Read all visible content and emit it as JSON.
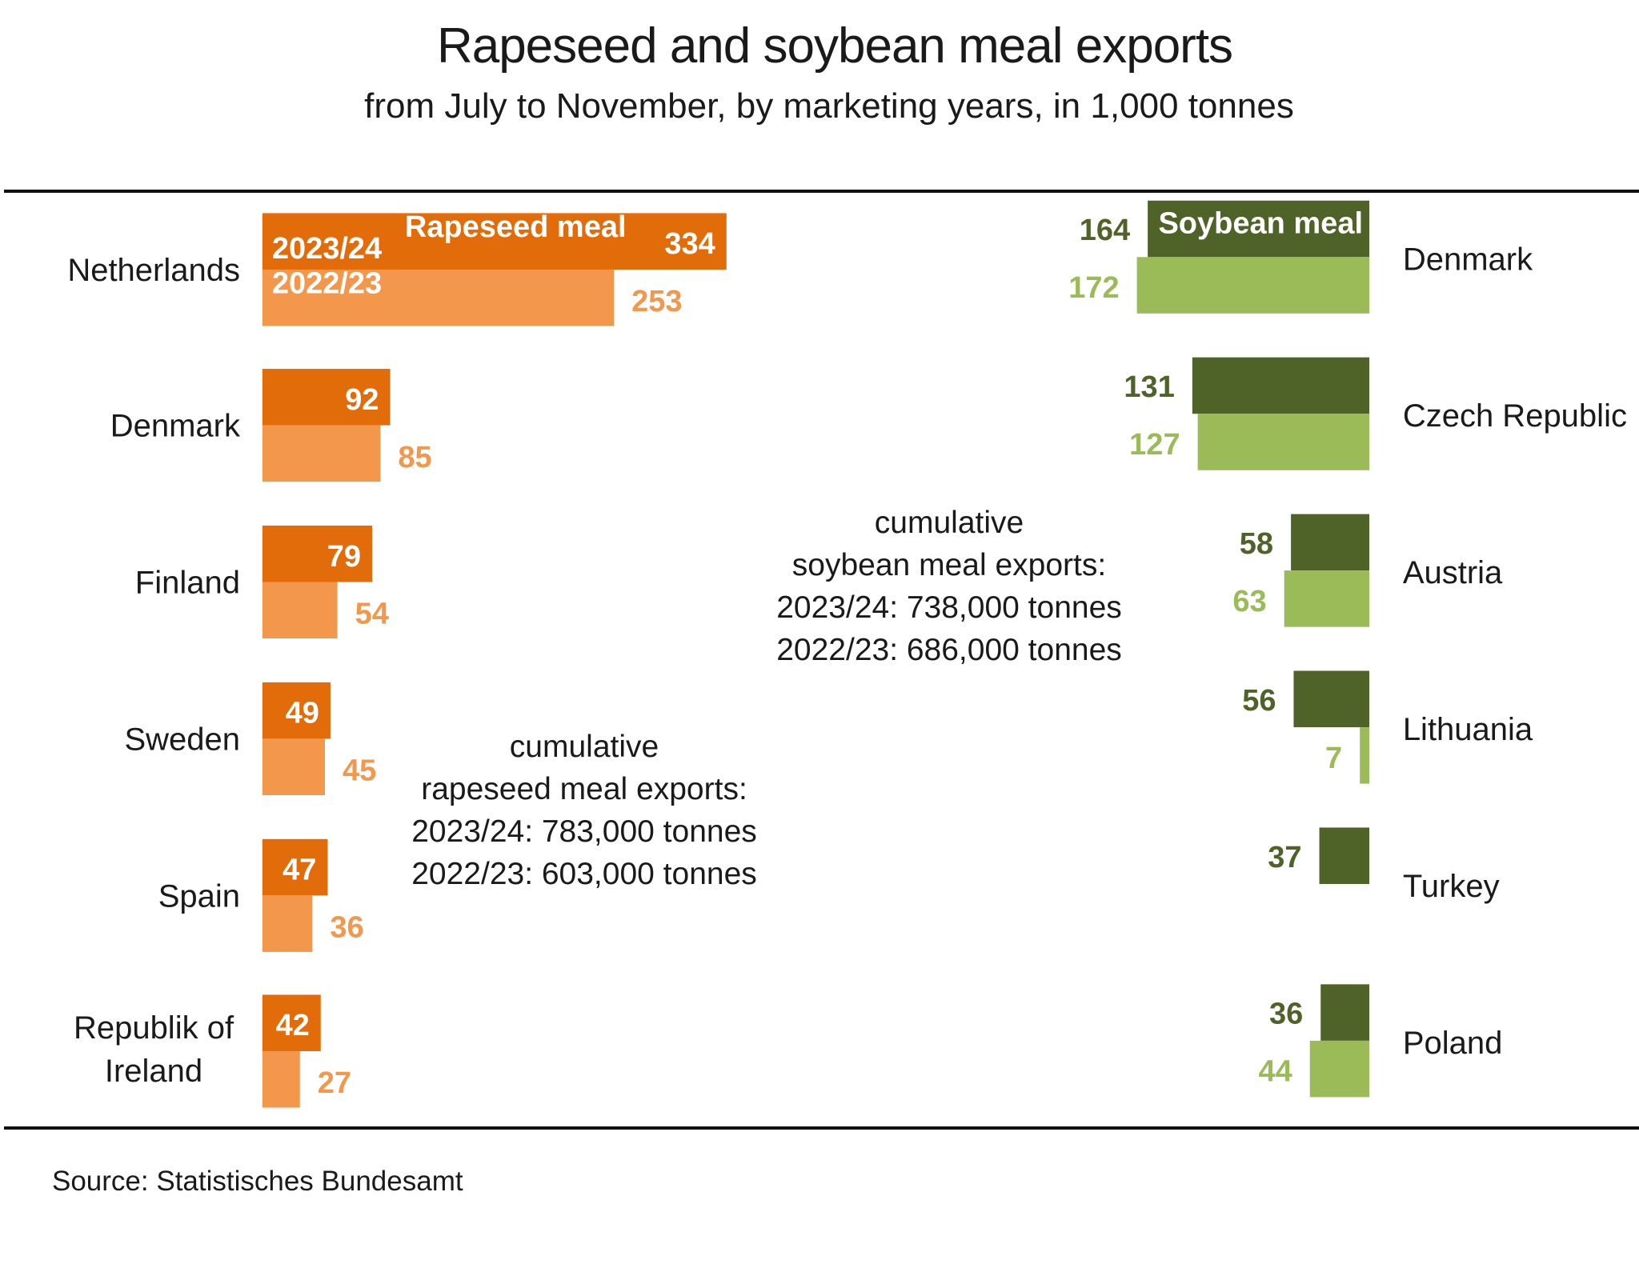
{
  "chart_data": {
    "type": "bar",
    "title": "Rapeseed and soybean meal exports",
    "subtitle": "from July to November, by marketing years, in 1,000 tonnes",
    "source": "Source:  Statistisches Bundesamt",
    "colors": {
      "rapeseed_current": "#e36c0a",
      "rapeseed_previous": "#f2974b",
      "soybean_current": "#4f6228",
      "soybean_previous": "#9bbb59"
    },
    "legend": {
      "current_label": "2023/24",
      "previous_label": "2022/23"
    },
    "panels": [
      {
        "name": "Rapeseed meal",
        "orientation": "left-to-right",
        "categories": [
          "Netherlands",
          "Denmark",
          "Finland",
          "Sweden",
          "Spain",
          "Republik of\nIreland"
        ],
        "series": [
          {
            "name": "2023/24",
            "values": [
              334,
              92,
              79,
              49,
              47,
              42
            ]
          },
          {
            "name": "2022/23",
            "values": [
              253,
              85,
              54,
              45,
              36,
              27
            ]
          }
        ],
        "note": [
          "cumulative",
          "rapeseed meal exports:",
          "2023/24: 783,000 tonnes",
          "2022/23: 603,000 tonnes"
        ]
      },
      {
        "name": "Soybean meal",
        "orientation": "right-to-left",
        "categories": [
          "Denmark",
          "Czech Republic",
          "Austria",
          "Lithuania",
          "Turkey",
          "Poland"
        ],
        "series": [
          {
            "name": "2023/24",
            "values": [
              164,
              131,
              58,
              56,
              37,
              36
            ]
          },
          {
            "name": "2022/23",
            "values": [
              172,
              127,
              63,
              7,
              null,
              44
            ]
          }
        ],
        "note": [
          "cumulative",
          "soybean meal exports:",
          "2023/24: 738,000 tonnes",
          "2022/23: 686,000 tonnes"
        ]
      }
    ]
  }
}
